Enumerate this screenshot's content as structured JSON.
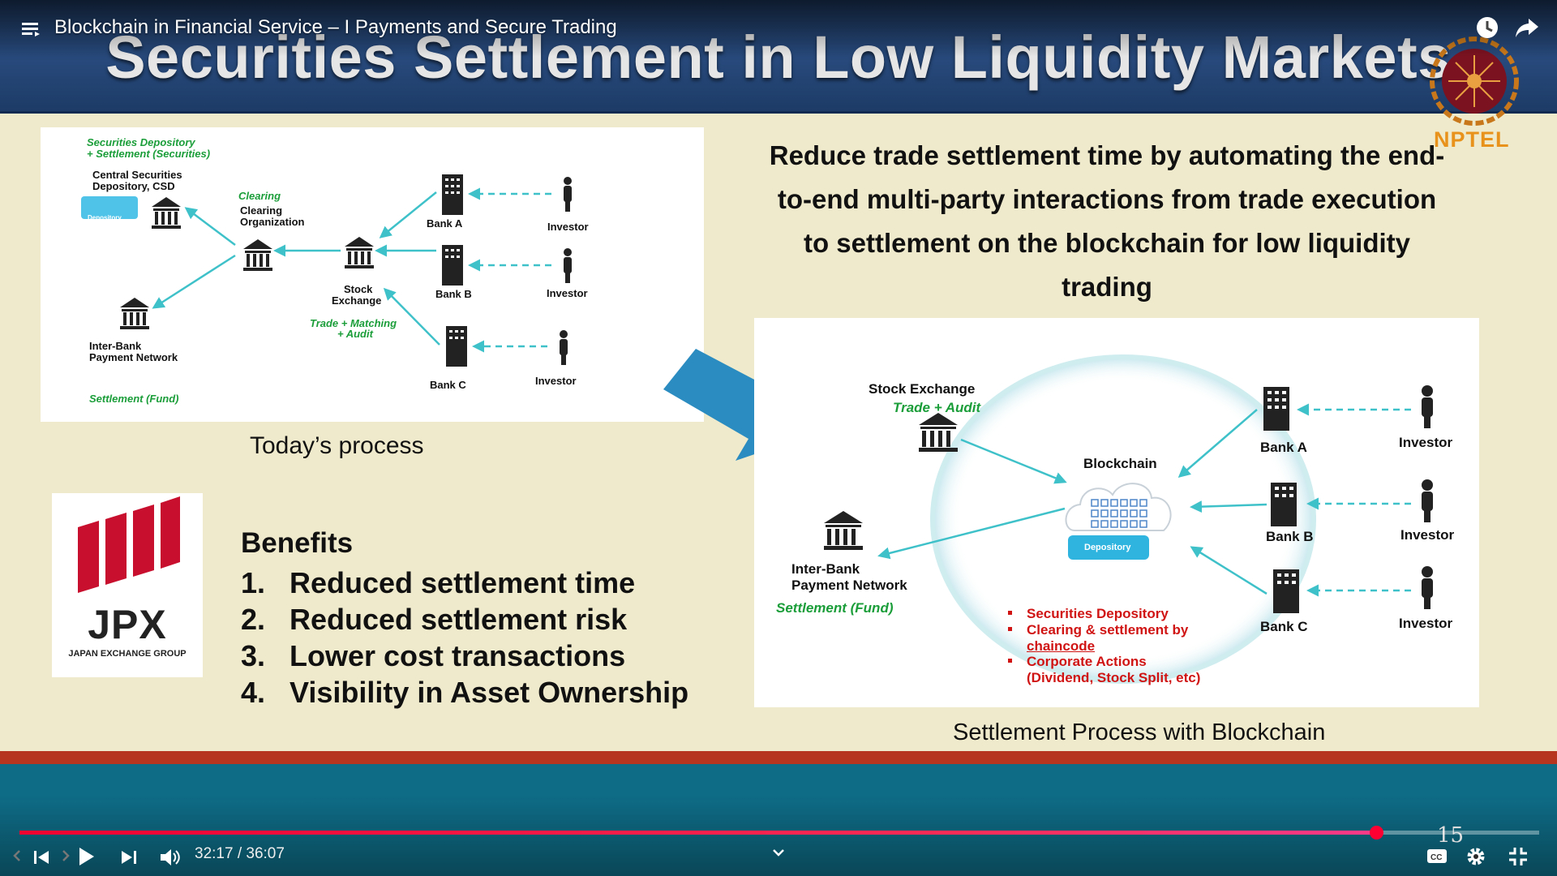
{
  "player": {
    "video_title": "Blockchain in Financial Service – I Payments and Secure Trading",
    "time_current": "32:17",
    "time_separator": "/",
    "time_total": "36:07",
    "progress_fraction": 0.893,
    "chapter_number": "15",
    "colors": {
      "progress": "#ff0033",
      "overlay_text": "#ffffff"
    },
    "icons": [
      "menu-icon",
      "watch-later-icon",
      "share-icon",
      "previous-icon",
      "play-icon",
      "next-icon",
      "volume-icon",
      "chevron-down-icon",
      "captions-icon",
      "settings-icon",
      "exit-fullscreen-icon"
    ]
  },
  "slide": {
    "title": "Securities Settlement in Low Liquidity Markets",
    "logo_text": "NPTEL",
    "headline": "Reduce trade settlement time by automating the end-to-end multi-party interactions from trade execution to settlement on the blockchain for low liquidity trading",
    "left_caption": "Today’s process",
    "right_caption": "Settlement Process with Blockchain",
    "jpx": {
      "word": "JPX",
      "sub": "JAPAN EXCHANGE GROUP"
    },
    "benefits": {
      "title": "Benefits",
      "items": [
        {
          "num": "1.",
          "text": "Reduced settlement time"
        },
        {
          "num": "2.",
          "text": "Reduced settlement risk"
        },
        {
          "num": "3.",
          "text": "Lower cost transactions"
        },
        {
          "num": "4.",
          "text": "Visibility in Asset Ownership"
        }
      ]
    },
    "today_diagram": {
      "depository_label_1": "Securities Depository",
      "depository_label_2": "+ Settlement (Securities)",
      "csd_1": "Central Securities",
      "csd_2": "Depository, CSD",
      "depository_box": "Depository",
      "clearing_green": "Clearing",
      "clearing_1": "Clearing",
      "clearing_2": "Organization",
      "stock_1": "Stock",
      "stock_2": "Exchange",
      "trade_1": "Trade + Matching",
      "trade_2": "+ Audit",
      "interbank_1": "Inter-Bank",
      "interbank_2": "Payment Network",
      "settlement_fund": "Settlement (Fund)",
      "bank_a": "Bank A",
      "bank_b": "Bank B",
      "bank_c": "Bank C",
      "investor": "Investor"
    },
    "blockchain_diagram": {
      "stock_exchange": "Stock Exchange",
      "trade_audit": "Trade + Audit",
      "blockchain": "Blockchain",
      "depository": "Depository",
      "interbank_1": "Inter-Bank",
      "interbank_2": "Payment Network",
      "settlement_fund": "Settlement (Fund)",
      "bank_a": "Bank A",
      "bank_b": "Bank B",
      "bank_c": "Bank C",
      "investor": "Investor",
      "bullets": [
        "Securities Depository",
        "Clearing & settlement by",
        "chaincode",
        "Corporate Actions",
        "(Dividend, Stock Split, etc)"
      ]
    },
    "colors": {
      "title_band": "#27497b",
      "background": "#efeacb",
      "arrow": "#2a8cc0",
      "connector": "#3fc1c9",
      "accent_red": "#b5351e"
    }
  }
}
